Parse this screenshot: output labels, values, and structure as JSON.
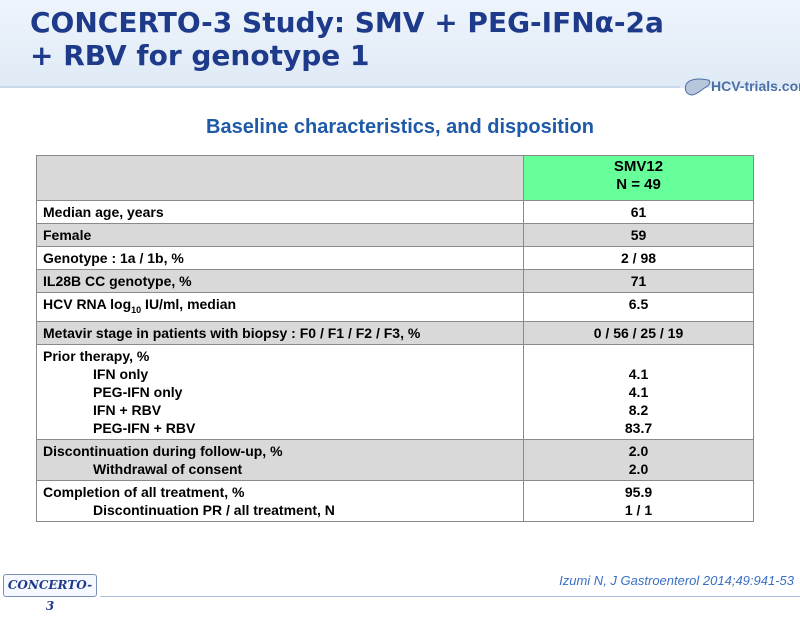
{
  "slide": {
    "title_line1": "CONCERTO-3 Study: SMV + PEG-IFNα-2a",
    "title_line2": "+ RBV for genotype 1",
    "logo_text": "HCV-trials.com",
    "subtitle": "Baseline characteristics, and disposition",
    "footer_badge": "CONCERTO-3",
    "reference": "Izumi N, J Gastroenterol 2014;49:941-53"
  },
  "table": {
    "arm_name": "SMV12",
    "arm_n": "N = 49",
    "rows": [
      {
        "label": "Median age, years",
        "value": "61"
      },
      {
        "label": "Female",
        "value": "59"
      },
      {
        "label": "Genotype : 1a / 1b, %",
        "value": "2 / 98"
      },
      {
        "label": "IL28B CC genotype, %",
        "value": "71"
      },
      {
        "label_pre": "HCV RNA log",
        "label_sub": "10",
        "label_post": " IU/ml, median",
        "value": "6.5"
      },
      {
        "label": "Metavir stage in patients with biopsy : F0 / F1 / F2 / F3, %",
        "value": "0 / 56 / 25 / 19"
      },
      {
        "label": "Prior therapy, %",
        "sub": [
          {
            "label": "IFN only",
            "value": "4.1"
          },
          {
            "label": "PEG-IFN only",
            "value": "4.1"
          },
          {
            "label": "IFN + RBV",
            "value": "8.2"
          },
          {
            "label": "PEG-IFN + RBV",
            "value": "83.7"
          }
        ]
      },
      {
        "label": "Discontinuation during follow-up, %",
        "value": "2.0",
        "sub": [
          {
            "label": "Withdrawal of consent",
            "value": "2.0"
          }
        ]
      },
      {
        "label": "Completion of all treatment, %",
        "value": "95.9",
        "sub": [
          {
            "label": "Discontinuation PR / all treatment, N",
            "value": "1 / 1"
          }
        ]
      }
    ]
  },
  "colors": {
    "title": "#1e3a8a",
    "subtitle": "#1e5aa8",
    "arm_header": "#66ff99",
    "row_shade": "#d9d9d9"
  }
}
